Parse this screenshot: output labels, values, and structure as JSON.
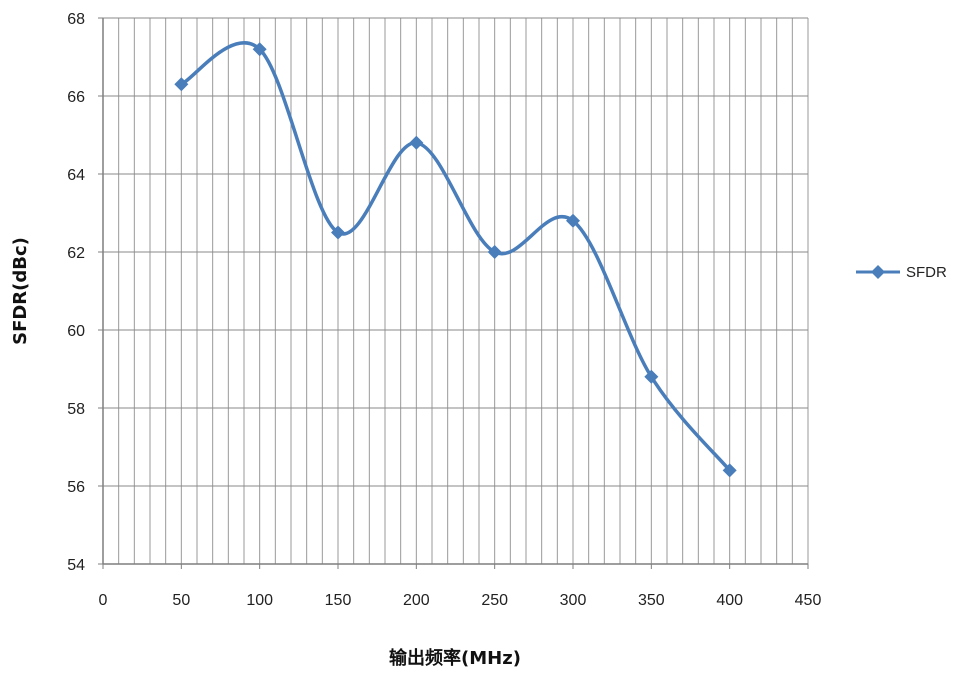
{
  "chart_data": {
    "type": "line",
    "title": "",
    "xlabel": "输出频率(MHz)",
    "ylabel": "SFDR(dBc)",
    "xlim": [
      0,
      450
    ],
    "ylim": [
      54,
      68
    ],
    "x_ticks": [
      "0",
      "50",
      "100",
      "150",
      "200",
      "250",
      "300",
      "350",
      "400",
      "450"
    ],
    "y_ticks": [
      "54",
      "56",
      "58",
      "60",
      "62",
      "64",
      "66",
      "68"
    ],
    "x_minor_step": 10,
    "y_major_step": 2,
    "grid": true,
    "legend_position": "right",
    "smooth": true,
    "series": [
      {
        "name": "SFDR",
        "color": "#4a7ebb",
        "marker": "diamond",
        "x": [
          50,
          100,
          150,
          200,
          250,
          300,
          350,
          400
        ],
        "y": [
          66.3,
          67.2,
          62.5,
          64.8,
          62.0,
          62.8,
          58.8,
          56.4
        ]
      }
    ]
  }
}
